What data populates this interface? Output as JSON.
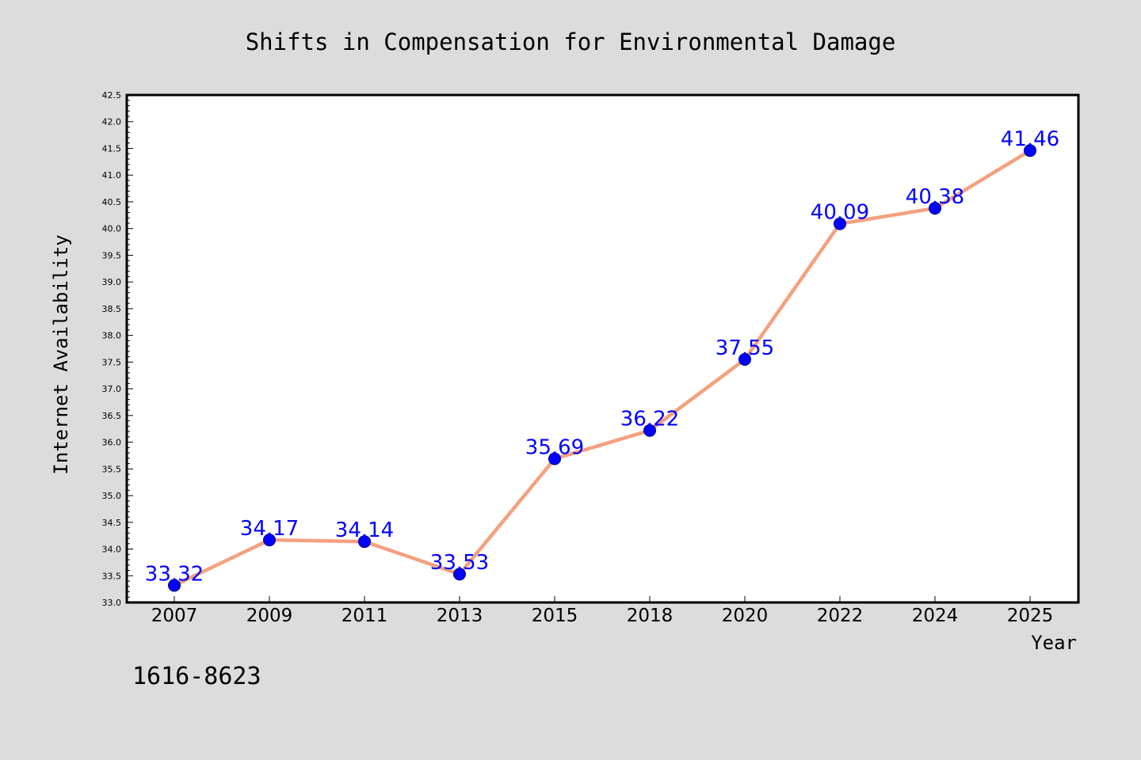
{
  "chart_data": {
    "type": "line",
    "title": "Shifts in Compensation for Environmental Damage",
    "xlabel": "Year",
    "ylabel": "Internet Availability",
    "categories": [
      "2007",
      "2009",
      "2011",
      "2013",
      "2015",
      "2018",
      "2020",
      "2022",
      "2024",
      "2025"
    ],
    "series": [
      {
        "values": [
          33.32,
          34.17,
          34.14,
          33.53,
          35.69,
          36.22,
          37.55,
          40.09,
          40.38,
          41.46
        ]
      }
    ],
    "data_labels": [
      "33.32",
      "34.17",
      "34.14",
      "33.53",
      "35.69",
      "36.22",
      "37.55",
      "40.09",
      "40.38",
      "41.46"
    ],
    "ylim": [
      33.0,
      42.5
    ],
    "yticks": [
      "33.0",
      "33.5",
      "34.0",
      "34.5",
      "35.0",
      "35.5",
      "36.0",
      "36.5",
      "37.0",
      "37.5",
      "38.0",
      "38.5",
      "39.0",
      "39.5",
      "40.0",
      "40.5",
      "41.0",
      "41.5",
      "42.0",
      "42.5"
    ],
    "grid": false,
    "legend": "none",
    "colors": {
      "line": "#f4a07f",
      "marker": "#0000ff",
      "marker_edge": "#000080",
      "data_label": "#0000ff",
      "background": "#dcdcdc",
      "plot_background": "#ffffff"
    }
  },
  "footnote": "1616-8623"
}
